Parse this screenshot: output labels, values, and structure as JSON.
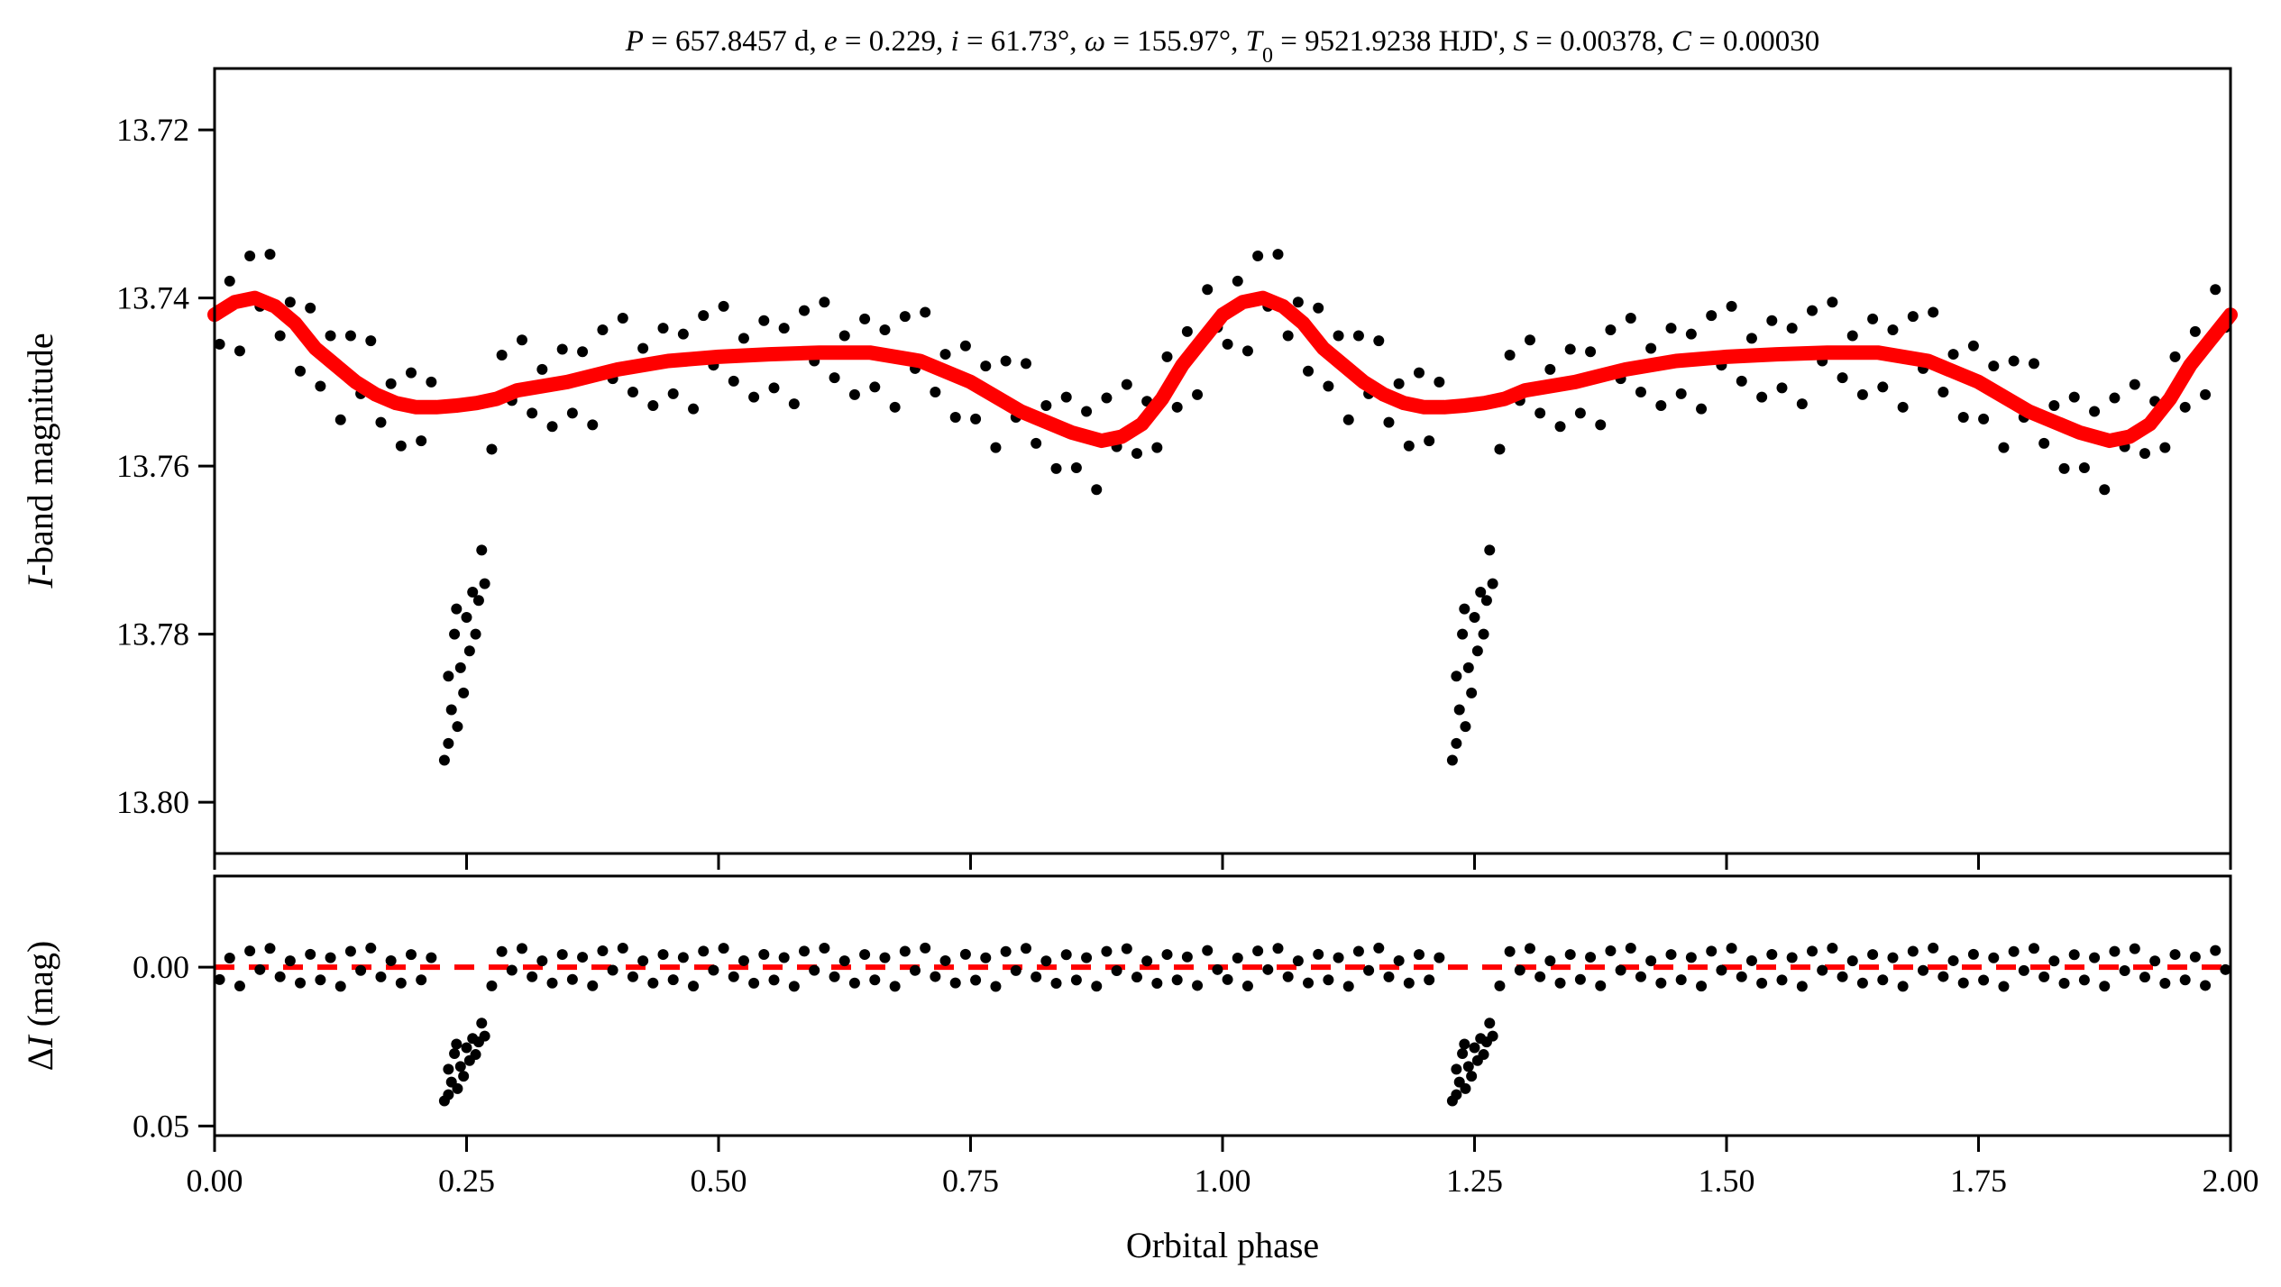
{
  "chart_data": {
    "type": "scatter",
    "title_parts": [
      {
        "text": "P",
        "italic": true
      },
      {
        "text": " = 657.8457 d, ",
        "italic": false
      },
      {
        "text": "e",
        "italic": true
      },
      {
        "text": " = 0.229, ",
        "italic": false
      },
      {
        "text": "i",
        "italic": true
      },
      {
        "text": " = 61.73°, ",
        "italic": false
      },
      {
        "text": "ω",
        "italic": true
      },
      {
        "text": " = 155.97°, ",
        "italic": false
      },
      {
        "text": "T",
        "italic": true
      },
      {
        "text": "0",
        "italic": false,
        "sub": true
      },
      {
        "text": " = 9521.9238 HJD', ",
        "italic": false
      },
      {
        "text": "S",
        "italic": true
      },
      {
        "text": " = 0.00378, ",
        "italic": false
      },
      {
        "text": "C",
        "italic": true
      },
      {
        "text": " = 0.00030",
        "italic": false
      }
    ],
    "xlabel": "Orbital phase",
    "xlim": [
      0,
      2
    ],
    "xticks": [
      "0.00",
      "0.25",
      "0.50",
      "0.75",
      "1.00",
      "1.25",
      "1.50",
      "1.75",
      "2.00"
    ],
    "top_panel": {
      "ylabel_italic": "I",
      "ylabel_rest": "-band magnitude",
      "ylim": [
        13.8061,
        13.7127
      ],
      "yticks": [
        "13.72",
        "13.74",
        "13.76",
        "13.78",
        "13.80"
      ],
      "point_color": "#000000",
      "model_color": "#ff0000"
    },
    "bottom_panel": {
      "ylabel_prefix": "Δ",
      "ylabel_italic": "I",
      "ylabel_rest": " (mag)",
      "ylim": [
        0.053,
        -0.0287
      ],
      "yticks": [
        "0.00",
        "0.05"
      ],
      "zero_line_color": "#ff0000"
    },
    "phase_repeat": 2,
    "model": {
      "phase": [
        0,
        0.02,
        0.04,
        0.06,
        0.08,
        0.1,
        0.12,
        0.14,
        0.16,
        0.18,
        0.2,
        0.22,
        0.24,
        0.26,
        0.28,
        0.3,
        0.35,
        0.4,
        0.45,
        0.5,
        0.55,
        0.6,
        0.65,
        0.7,
        0.75,
        0.8,
        0.85,
        0.88,
        0.9,
        0.92,
        0.94,
        0.96,
        0.98,
        1.0
      ],
      "mag": [
        13.742,
        13.7405,
        13.74,
        13.741,
        13.743,
        13.746,
        13.748,
        13.75,
        13.7515,
        13.7525,
        13.753,
        13.753,
        13.7528,
        13.7525,
        13.752,
        13.751,
        13.75,
        13.7485,
        13.7475,
        13.747,
        13.7467,
        13.7465,
        13.7465,
        13.7475,
        13.75,
        13.7535,
        13.756,
        13.757,
        13.7565,
        13.755,
        13.752,
        13.748,
        13.745,
        13.742
      ]
    },
    "points": [
      [
        0.005,
        13.7455
      ],
      [
        0.015,
        13.738
      ],
      [
        0.025,
        13.7463
      ],
      [
        0.035,
        13.735
      ],
      [
        0.045,
        13.741
      ],
      [
        0.055,
        13.7348
      ],
      [
        0.065,
        13.7445
      ],
      [
        0.075,
        13.7405
      ],
      [
        0.085,
        13.7487
      ],
      [
        0.095,
        13.7412
      ],
      [
        0.105,
        13.7505
      ],
      [
        0.115,
        13.7445
      ],
      [
        0.125,
        13.7545
      ],
      [
        0.135,
        13.7445
      ],
      [
        0.145,
        13.7514
      ],
      [
        0.155,
        13.7451
      ],
      [
        0.165,
        13.7548
      ],
      [
        0.175,
        13.7502
      ],
      [
        0.185,
        13.7576
      ],
      [
        0.195,
        13.7489
      ],
      [
        0.205,
        13.757
      ],
      [
        0.215,
        13.75
      ],
      [
        0.228,
        13.795
      ],
      [
        0.232,
        13.785
      ],
      [
        0.232,
        13.793
      ],
      [
        0.235,
        13.789
      ],
      [
        0.238,
        13.78
      ],
      [
        0.24,
        13.777
      ],
      [
        0.241,
        13.791
      ],
      [
        0.244,
        13.784
      ],
      [
        0.247,
        13.787
      ],
      [
        0.25,
        13.778
      ],
      [
        0.253,
        13.782
      ],
      [
        0.256,
        13.775
      ],
      [
        0.259,
        13.78
      ],
      [
        0.262,
        13.776
      ],
      [
        0.265,
        13.77
      ],
      [
        0.268,
        13.774
      ],
      [
        0.275,
        13.758
      ],
      [
        0.285,
        13.7468
      ],
      [
        0.295,
        13.7522
      ],
      [
        0.305,
        13.745
      ],
      [
        0.315,
        13.7537
      ],
      [
        0.325,
        13.7485
      ],
      [
        0.335,
        13.7553
      ],
      [
        0.345,
        13.7461
      ],
      [
        0.355,
        13.7537
      ],
      [
        0.365,
        13.7464
      ],
      [
        0.375,
        13.7551
      ],
      [
        0.385,
        13.7438
      ],
      [
        0.395,
        13.7496
      ],
      [
        0.405,
        13.7424
      ],
      [
        0.415,
        13.7512
      ],
      [
        0.425,
        13.746
      ],
      [
        0.435,
        13.7528
      ],
      [
        0.445,
        13.7436
      ],
      [
        0.455,
        13.7514
      ],
      [
        0.465,
        13.7443
      ],
      [
        0.475,
        13.7532
      ],
      [
        0.485,
        13.7421
      ],
      [
        0.495,
        13.748
      ],
      [
        0.505,
        13.741
      ],
      [
        0.515,
        13.7499
      ],
      [
        0.525,
        13.7448
      ],
      [
        0.535,
        13.7518
      ],
      [
        0.545,
        13.7427
      ],
      [
        0.555,
        13.7507
      ],
      [
        0.565,
        13.7436
      ],
      [
        0.575,
        13.7526
      ],
      [
        0.585,
        13.7415
      ],
      [
        0.595,
        13.7475
      ],
      [
        0.605,
        13.7405
      ],
      [
        0.615,
        13.7495
      ],
      [
        0.625,
        13.7445
      ],
      [
        0.635,
        13.7515
      ],
      [
        0.645,
        13.7425
      ],
      [
        0.655,
        13.7506
      ],
      [
        0.665,
        13.7438
      ],
      [
        0.675,
        13.753
      ],
      [
        0.685,
        13.7422
      ],
      [
        0.695,
        13.7484
      ],
      [
        0.705,
        13.7417
      ],
      [
        0.715,
        13.7512
      ],
      [
        0.725,
        13.7467
      ],
      [
        0.735,
        13.7542
      ],
      [
        0.745,
        13.7457
      ],
      [
        0.755,
        13.7544
      ],
      [
        0.765,
        13.7481
      ],
      [
        0.775,
        13.7578
      ],
      [
        0.785,
        13.7475
      ],
      [
        0.795,
        13.7542
      ],
      [
        0.805,
        13.7478
      ],
      [
        0.815,
        13.7573
      ],
      [
        0.825,
        13.7528
      ],
      [
        0.835,
        13.7603
      ],
      [
        0.845,
        13.7518
      ],
      [
        0.855,
        13.7602
      ],
      [
        0.865,
        13.7535
      ],
      [
        0.875,
        13.7628
      ],
      [
        0.885,
        13.7519
      ],
      [
        0.895,
        13.7577
      ],
      [
        0.905,
        13.7503
      ],
      [
        0.915,
        13.7585
      ],
      [
        0.925,
        13.7523
      ],
      [
        0.935,
        13.7578
      ],
      [
        0.945,
        13.747
      ],
      [
        0.955,
        13.753
      ],
      [
        0.965,
        13.744
      ],
      [
        0.975,
        13.7515
      ],
      [
        0.985,
        13.739
      ],
      [
        0.995,
        13.7435
      ]
    ]
  }
}
